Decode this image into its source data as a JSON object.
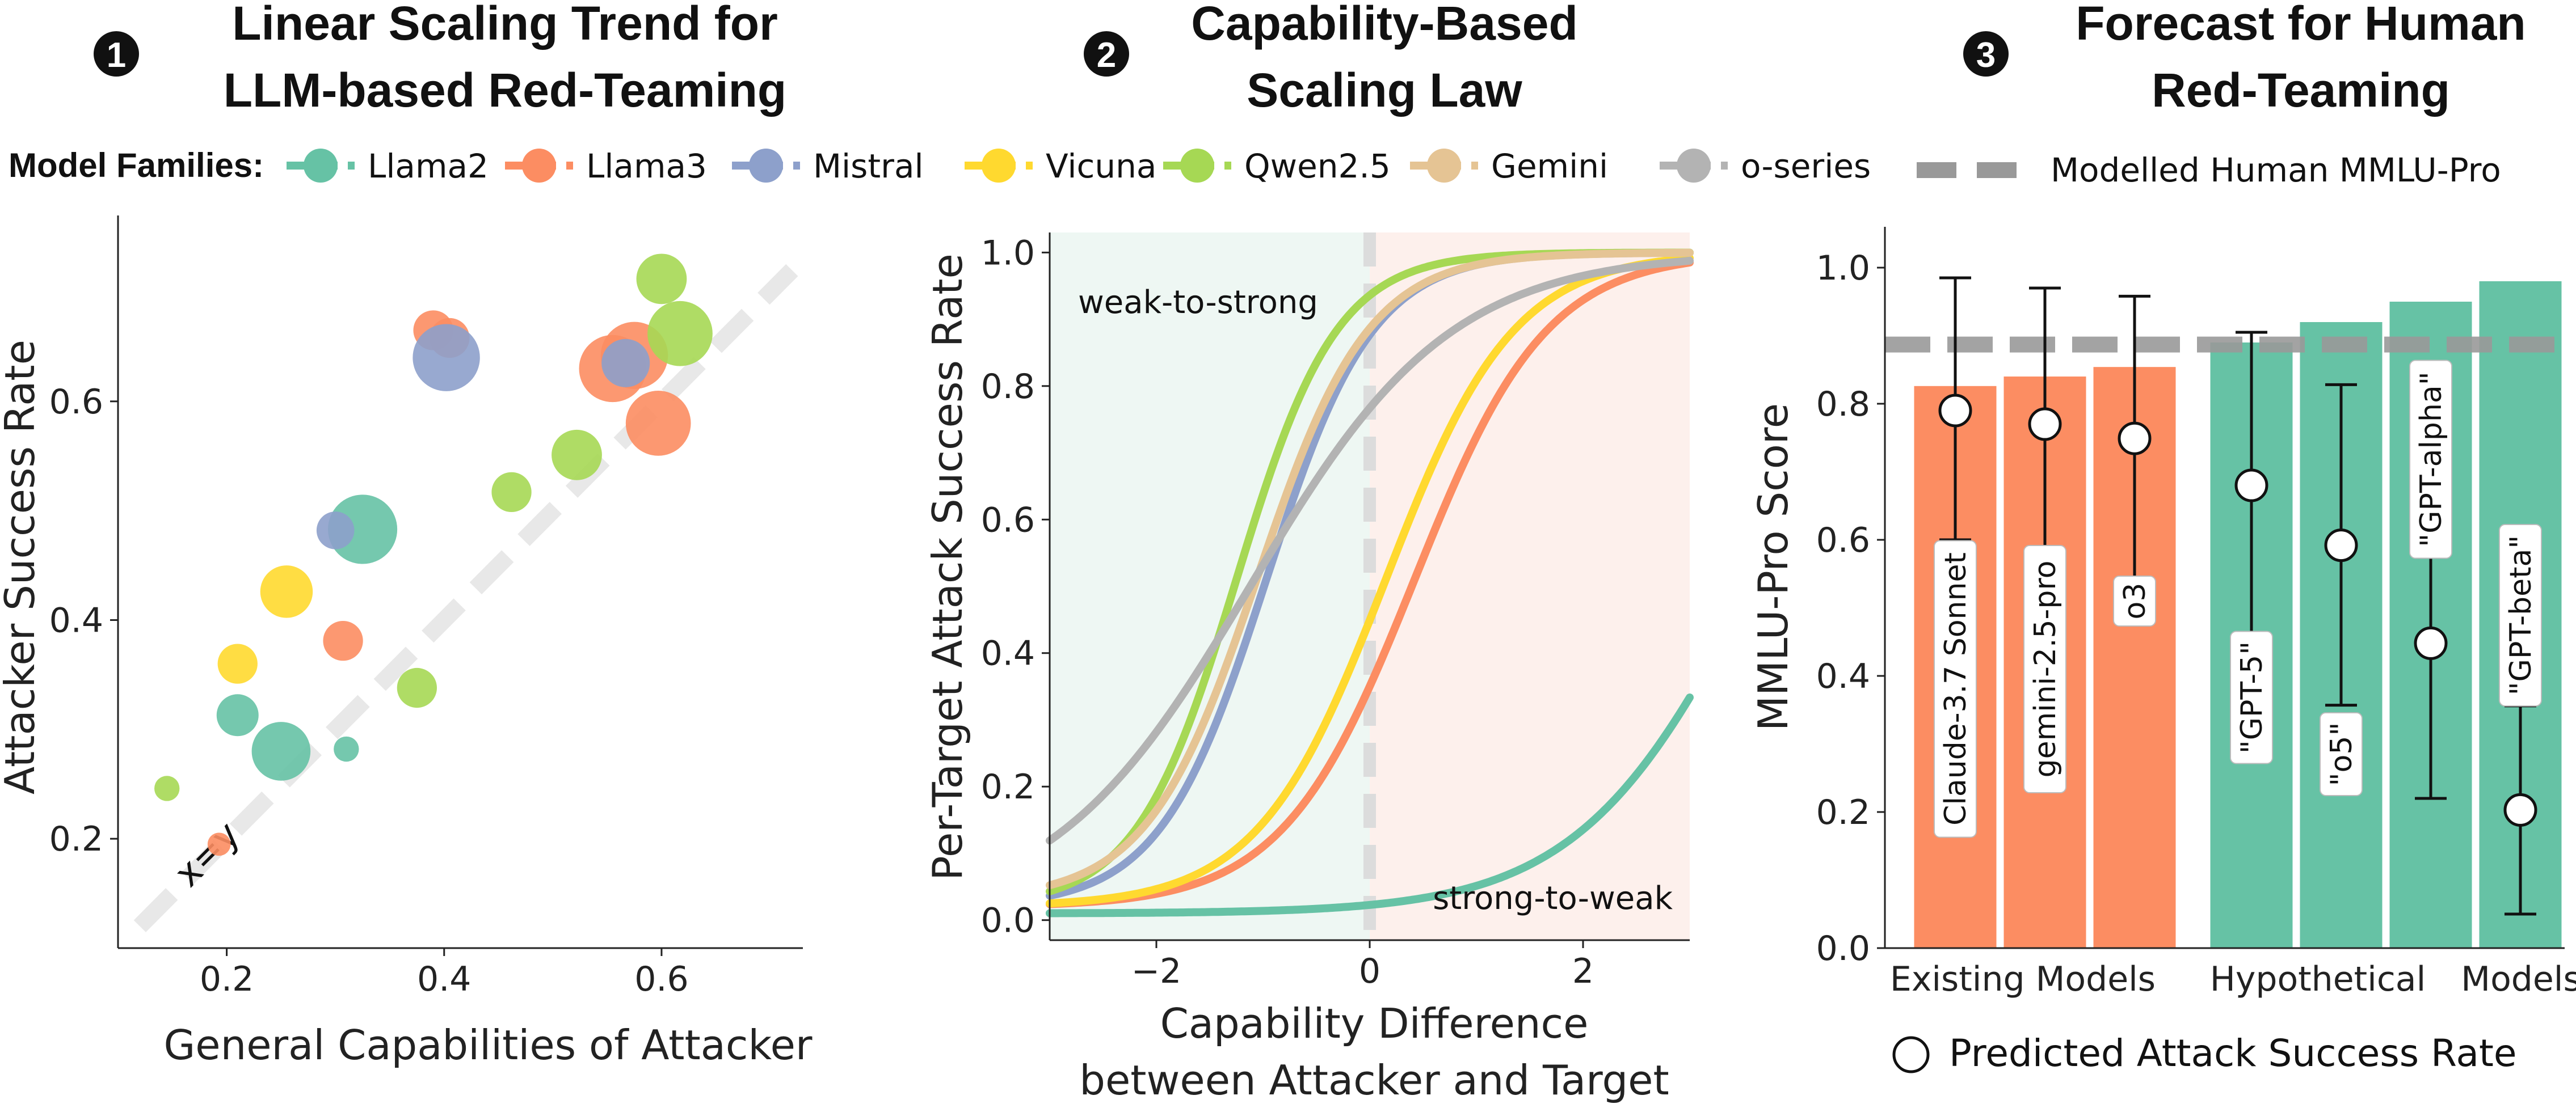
{
  "legend": {
    "title": "Model Families:",
    "families": [
      {
        "name": "Llama2",
        "color": "#66c2a5"
      },
      {
        "name": "Llama3",
        "color": "#fc8d62"
      },
      {
        "name": "Mistral",
        "color": "#8da0cb"
      },
      {
        "name": "Vicuna",
        "color": "#ffd92f"
      },
      {
        "name": "Qwen2.5",
        "color": "#a6d854"
      },
      {
        "name": "Gemini",
        "color": "#e5c494"
      },
      {
        "name": "o-series",
        "color": "#b3b3b3"
      }
    ]
  },
  "panels": [
    {
      "number": "1",
      "title_line1": "Linear Scaling Trend for",
      "title_line2": "LLM-based Red-Teaming"
    },
    {
      "number": "2",
      "title_line1": "Capability-Based",
      "title_line2": "Scaling Law"
    },
    {
      "number": "3",
      "title_line1": "Forecast for Human",
      "title_line2": "Red-Teaming"
    }
  ],
  "chart_data": [
    {
      "type": "scatter",
      "title": "Linear Scaling Trend for LLM-based Red-Teaming",
      "xlabel": "General Capabilities of Attacker",
      "ylabel": "Attacker Success Rate",
      "xlim": [
        0.1,
        0.73
      ],
      "ylim": [
        0.1,
        0.77
      ],
      "xticks": [
        "0.2",
        "0.4",
        "0.6"
      ],
      "yticks": [
        "0.2",
        "0.4",
        "0.6"
      ],
      "reference_line_label": "x=y",
      "grid": false,
      "points": [
        {
          "family": "Llama2",
          "x": 0.21,
          "y": 0.313,
          "size": 1.0
        },
        {
          "family": "Llama2",
          "x": 0.25,
          "y": 0.28,
          "size": 1.4
        },
        {
          "family": "Llama2",
          "x": 0.325,
          "y": 0.483,
          "size": 1.65
        },
        {
          "family": "Llama2",
          "x": 0.31,
          "y": 0.282,
          "size": 0.6
        },
        {
          "family": "Llama3",
          "x": 0.193,
          "y": 0.195,
          "size": 0.55
        },
        {
          "family": "Llama3",
          "x": 0.307,
          "y": 0.381,
          "size": 0.95
        },
        {
          "family": "Llama3",
          "x": 0.39,
          "y": 0.665,
          "size": 0.95
        },
        {
          "family": "Llama3",
          "x": 0.405,
          "y": 0.658,
          "size": 0.95
        },
        {
          "family": "Llama3",
          "x": 0.555,
          "y": 0.63,
          "size": 1.6
        },
        {
          "family": "Llama3",
          "x": 0.575,
          "y": 0.642,
          "size": 1.6
        },
        {
          "family": "Llama3",
          "x": 0.597,
          "y": 0.58,
          "size": 1.55
        },
        {
          "family": "Mistral",
          "x": 0.3,
          "y": 0.482,
          "size": 0.9
        },
        {
          "family": "Mistral",
          "x": 0.402,
          "y": 0.64,
          "size": 1.6
        },
        {
          "family": "Mistral",
          "x": 0.567,
          "y": 0.635,
          "size": 1.15
        },
        {
          "family": "Vicuna",
          "x": 0.21,
          "y": 0.36,
          "size": 0.95
        },
        {
          "family": "Vicuna",
          "x": 0.255,
          "y": 0.426,
          "size": 1.25
        },
        {
          "family": "Qwen2.5",
          "x": 0.145,
          "y": 0.246,
          "size": 0.6
        },
        {
          "family": "Qwen2.5",
          "x": 0.375,
          "y": 0.338,
          "size": 0.95
        },
        {
          "family": "Qwen2.5",
          "x": 0.462,
          "y": 0.517,
          "size": 0.95
        },
        {
          "family": "Qwen2.5",
          "x": 0.522,
          "y": 0.551,
          "size": 1.2
        },
        {
          "family": "Qwen2.5",
          "x": 0.6,
          "y": 0.712,
          "size": 1.2
        },
        {
          "family": "Qwen2.5",
          "x": 0.617,
          "y": 0.662,
          "size": 1.55
        }
      ]
    },
    {
      "type": "line",
      "title": "Capability-Based Scaling Law",
      "xlabel_line1": "Capability Difference",
      "xlabel_line2": "between Attacker and Target",
      "ylabel": "Per-Target Attack  Success Rate",
      "xlim": [
        -3,
        3
      ],
      "ylim": [
        -0.03,
        1.03
      ],
      "xticks": [
        -2,
        0,
        2
      ],
      "xtick_labels": [
        "−2",
        "0",
        "2"
      ],
      "yticks": [
        "0.0",
        "0.2",
        "0.4",
        "0.6",
        "0.8",
        "1.0"
      ],
      "regions": {
        "left_label": "weak-to-strong",
        "right_label": "strong-to-weak",
        "left_color": "#eef7f3",
        "right_color": "#fdf0ec"
      },
      "series": [
        {
          "name": "Llama2",
          "color": "#66c2a5",
          "min": 0.01,
          "max": 1.0,
          "mid": 3.6,
          "scale": 0.83
        },
        {
          "name": "Llama3",
          "color": "#fc8d62",
          "min": 0.02,
          "max": 1.0,
          "mid": 0.42,
          "scale": 0.62
        },
        {
          "name": "Mistral",
          "color": "#8da0cb",
          "min": 0.02,
          "max": 1.0,
          "mid": -0.97,
          "scale": 0.5
        },
        {
          "name": "Vicuna",
          "color": "#ffd92f",
          "min": 0.02,
          "max": 1.0,
          "mid": 0.15,
          "scale": 0.6
        },
        {
          "name": "Qwen2.5",
          "color": "#a6d854",
          "min": 0.02,
          "max": 1.0,
          "mid": -1.25,
          "scale": 0.47
        },
        {
          "name": "Gemini",
          "color": "#e5c494",
          "min": 0.03,
          "max": 1.0,
          "mid": -1.05,
          "scale": 0.52
        },
        {
          "name": "o-series",
          "color": "#b3b3b3",
          "min": 0.0,
          "max": 1.0,
          "mid": -1.12,
          "scale": 0.94
        }
      ]
    },
    {
      "type": "bar",
      "title": "Forecast for Human Red-Teaming",
      "ylabel": "MMLU-Pro Score",
      "ylim": [
        0,
        1.06
      ],
      "yticks": [
        "0.0",
        "0.2",
        "0.4",
        "0.6",
        "0.8",
        "1.0"
      ],
      "group_labels": [
        "Existing Models",
        "Hypothetical",
        "Models"
      ],
      "reference_line": {
        "label": "Modelled Human MMLU-Pro",
        "value": 0.887,
        "color": "#999999"
      },
      "point_legend": "Predicted Attack Success Rate",
      "bars": [
        {
          "label": "Claude-3.7 Sonnet",
          "value": 0.826,
          "asr": 0.79,
          "err_low": 0.6,
          "err_high": 0.985,
          "color": "#fc8d62"
        },
        {
          "label": "gemini-2.5-pro",
          "value": 0.84,
          "asr": 0.77,
          "err_low": 0.57,
          "err_high": 0.97,
          "color": "#fc8d62"
        },
        {
          "label": "o3",
          "value": 0.854,
          "asr": 0.749,
          "err_low": 0.54,
          "err_high": 0.958,
          "color": "#fc8d62"
        },
        {
          "label": "\"GPT-5\"",
          "value": 0.89,
          "asr": 0.68,
          "err_low": 0.455,
          "err_high": 0.905,
          "color": "#66c2a5"
        },
        {
          "label": "\"o5\"",
          "value": 0.92,
          "asr": 0.592,
          "err_low": 0.357,
          "err_high": 0.828,
          "color": "#66c2a5"
        },
        {
          "label": "\"GPT-alpha\"",
          "value": 0.95,
          "asr": 0.448,
          "err_low": 0.22,
          "err_high": 0.676,
          "color": "#66c2a5"
        },
        {
          "label": "\"GPT-beta\"",
          "value": 0.98,
          "asr": 0.203,
          "err_low": 0.05,
          "err_high": 0.356,
          "color": "#66c2a5"
        }
      ]
    }
  ]
}
